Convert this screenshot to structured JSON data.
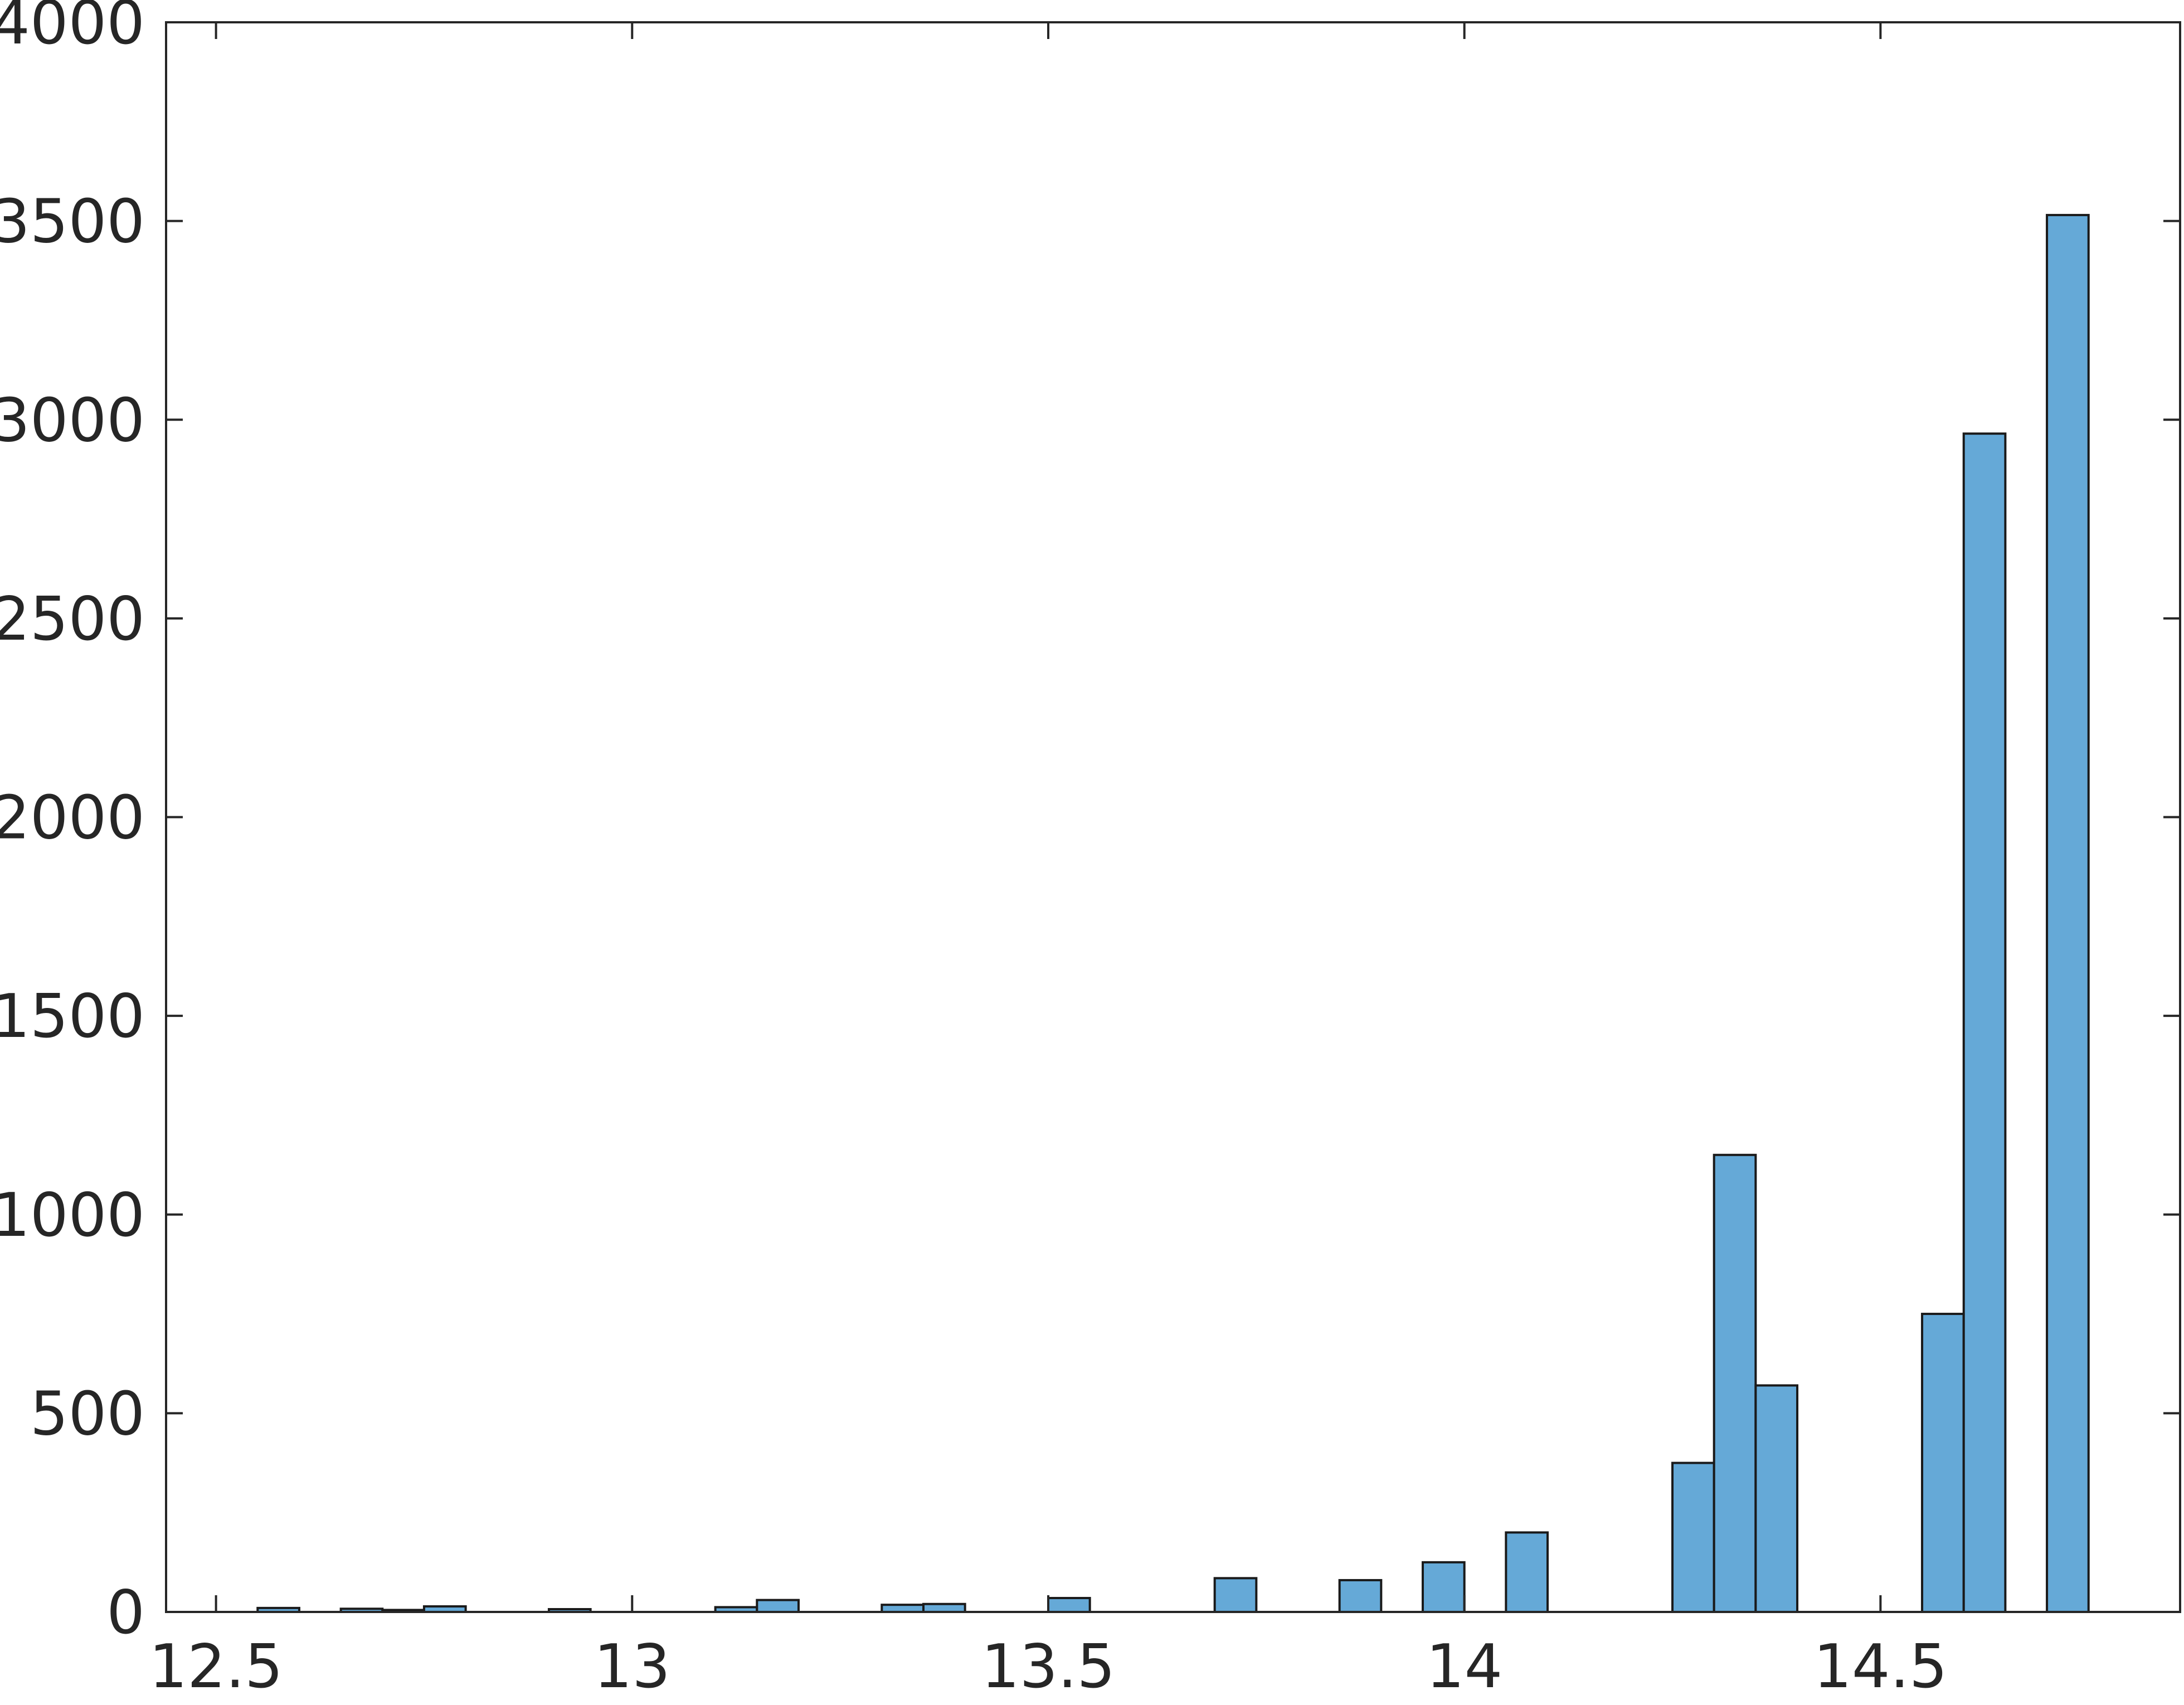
{
  "chart_data": {
    "type": "bar",
    "chart_style": "histogram",
    "bin_width": 0.05,
    "x": [
      12.575,
      12.675,
      12.725,
      12.775,
      12.925,
      13.125,
      13.175,
      13.325,
      13.375,
      13.525,
      13.725,
      13.875,
      13.975,
      14.075,
      14.275,
      14.325,
      14.375,
      14.575,
      14.625,
      14.725
    ],
    "values": [
      10,
      8,
      5,
      14,
      7,
      12,
      30,
      18,
      20,
      35,
      85,
      80,
      125,
      200,
      375,
      1150,
      570,
      750,
      2965,
      3515
    ],
    "xlim": [
      12.44,
      14.86
    ],
    "ylim": [
      0,
      4000
    ],
    "x_ticks": [
      12.5,
      13,
      13.5,
      14,
      14.5
    ],
    "x_tick_labels": [
      "12.5",
      "13",
      "13.5",
      "14",
      "14.5"
    ],
    "y_ticks": [
      0,
      500,
      1000,
      1500,
      2000,
      2500,
      3000,
      3500,
      4000
    ],
    "y_tick_labels": [
      "0",
      "500",
      "1000",
      "1500",
      "2000",
      "2500",
      "3000",
      "3500",
      "4000"
    ],
    "grid": false,
    "title": "",
    "xlabel": "",
    "ylabel": "",
    "bar_color": "#65a9d7",
    "bar_edge_color": "#1a1a1a",
    "axis_color": "#262626"
  }
}
